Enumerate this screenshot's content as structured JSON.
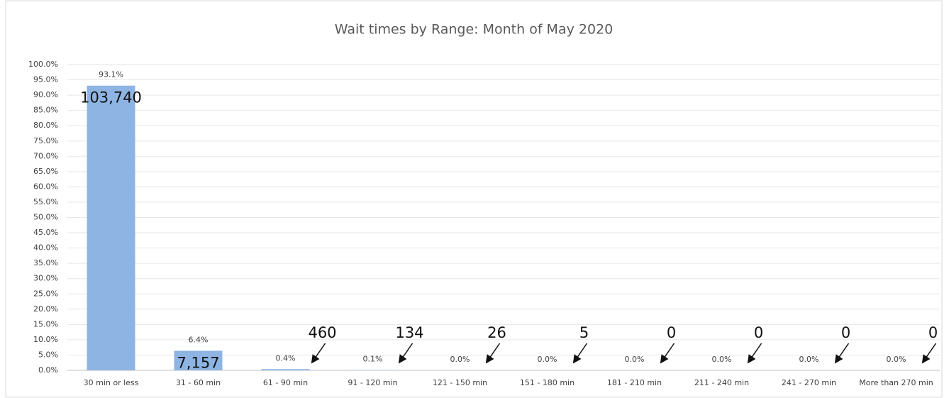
{
  "chart_data": {
    "type": "bar",
    "title": "Wait times by Range: Month of May 2020",
    "categories": [
      "30 min or less",
      "31 - 60 min",
      "61 - 90 min",
      "91 - 120 min",
      "121 - 150 min",
      "151 - 180 min",
      "181 - 210 min",
      "211 - 240 min",
      "241 - 270 min",
      "More than 270 min"
    ],
    "values": [
      93.1,
      6.4,
      0.4,
      0.1,
      0.0,
      0.0,
      0.0,
      0.0,
      0.0,
      0.0
    ],
    "value_labels": [
      "93.1%",
      "6.4%",
      "0.4%",
      "0.1%",
      "0.0%",
      "0.0%",
      "0.0%",
      "0.0%",
      "0.0%",
      "0.0%"
    ],
    "annotations": [
      "103,740",
      "7,157",
      "460",
      "134",
      "26",
      "5",
      "0",
      "0",
      "0",
      "0"
    ],
    "color": "#8db4e2",
    "ylim": [
      0,
      100
    ],
    "yticks": [
      {
        "value": 0,
        "label": "0.0%"
      },
      {
        "value": 5,
        "label": "5.0%"
      },
      {
        "value": 10,
        "label": "10.0%"
      },
      {
        "value": 15,
        "label": "15.0%"
      },
      {
        "value": 20,
        "label": "20.0%"
      },
      {
        "value": 25,
        "label": "25.0%"
      },
      {
        "value": 30,
        "label": "30.0%"
      },
      {
        "value": 35,
        "label": "35.0%"
      },
      {
        "value": 40,
        "label": "40.0%"
      },
      {
        "value": 45,
        "label": "45.0%"
      },
      {
        "value": 50,
        "label": "50.0%"
      },
      {
        "value": 55,
        "label": "55.0%"
      },
      {
        "value": 60,
        "label": "60.0%"
      },
      {
        "value": 65,
        "label": "65.0%"
      },
      {
        "value": 70,
        "label": "70.0%"
      },
      {
        "value": 75,
        "label": "75.0%"
      },
      {
        "value": 80,
        "label": "80.0%"
      },
      {
        "value": 85,
        "label": "85.0%"
      },
      {
        "value": 90,
        "label": "90.0%"
      },
      {
        "value": 95,
        "label": "95.0%"
      },
      {
        "value": 100,
        "label": "100.0%"
      }
    ],
    "grid": true
  }
}
